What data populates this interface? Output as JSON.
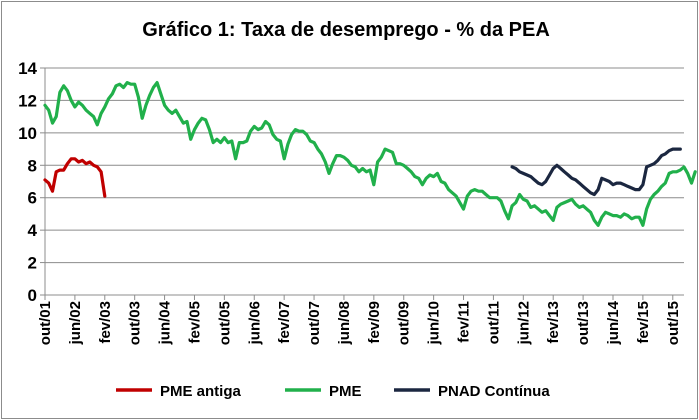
{
  "chart_data": {
    "type": "line",
    "title": "Gráfico 1: Taxa de desemprego - % da PEA",
    "xlabel": "",
    "ylabel": "",
    "ylim": [
      0,
      14
    ],
    "yticks": [
      0,
      2,
      4,
      6,
      8,
      10,
      12,
      14
    ],
    "grid": "horizontal",
    "legend_position": "bottom",
    "x_start": "2001-10",
    "x_end": "2016-01",
    "x_tick_labels": [
      {
        "label": "out/01",
        "date": "2001-10"
      },
      {
        "label": "jun/02",
        "date": "2002-06"
      },
      {
        "label": "fev/03",
        "date": "2003-02"
      },
      {
        "label": "out/03",
        "date": "2003-10"
      },
      {
        "label": "jun/04",
        "date": "2004-06"
      },
      {
        "label": "fev/05",
        "date": "2005-02"
      },
      {
        "label": "out/05",
        "date": "2005-10"
      },
      {
        "label": "jun/06",
        "date": "2006-06"
      },
      {
        "label": "fev/07",
        "date": "2007-02"
      },
      {
        "label": "out/07",
        "date": "2007-10"
      },
      {
        "label": "jun/08",
        "date": "2008-06"
      },
      {
        "label": "fev/09",
        "date": "2009-02"
      },
      {
        "label": "out/09",
        "date": "2009-10"
      },
      {
        "label": "jun/10",
        "date": "2010-06"
      },
      {
        "label": "fev/11",
        "date": "2011-02"
      },
      {
        "label": "out/11",
        "date": "2011-10"
      },
      {
        "label": "jun/12",
        "date": "2012-06"
      },
      {
        "label": "fev/13",
        "date": "2013-02"
      },
      {
        "label": "out/13",
        "date": "2013-10"
      },
      {
        "label": "jun/14",
        "date": "2014-06"
      },
      {
        "label": "fev/15",
        "date": "2015-02"
      },
      {
        "label": "out/15",
        "date": "2015-10"
      }
    ],
    "series": [
      {
        "name": "PME antiga",
        "color": "#c00000",
        "start": "2001-10",
        "values": [
          7.1,
          6.9,
          6.4,
          7.6,
          7.7,
          7.7,
          8.1,
          8.4,
          8.4,
          8.2,
          8.3,
          8.1,
          8.2,
          8.0,
          7.9,
          7.6,
          6.1
        ]
      },
      {
        "name": "PME",
        "color": "#21b04b",
        "start": "2001-10",
        "values": [
          11.7,
          11.4,
          10.6,
          11.0,
          12.5,
          12.9,
          12.6,
          12.0,
          11.6,
          11.9,
          11.7,
          11.4,
          11.2,
          11.0,
          10.5,
          11.2,
          11.6,
          12.1,
          12.4,
          12.9,
          13.0,
          12.8,
          13.1,
          13.0,
          13.0,
          12.2,
          10.9,
          11.7,
          12.3,
          12.8,
          13.1,
          12.4,
          11.7,
          11.4,
          11.2,
          11.4,
          11.0,
          10.6,
          10.7,
          9.6,
          10.2,
          10.6,
          10.9,
          10.8,
          10.2,
          9.4,
          9.6,
          9.4,
          9.7,
          9.4,
          9.5,
          8.4,
          9.4,
          9.4,
          9.5,
          10.1,
          10.4,
          10.2,
          10.3,
          10.7,
          10.5,
          9.9,
          9.6,
          9.5,
          8.4,
          9.3,
          9.9,
          10.2,
          10.1,
          10.1,
          9.9,
          9.5,
          9.4,
          9.0,
          8.7,
          8.2,
          7.5,
          8.1,
          8.6,
          8.6,
          8.5,
          8.3,
          8.0,
          7.9,
          7.6,
          7.8,
          7.6,
          7.7,
          6.8,
          8.2,
          8.5,
          9.0,
          8.9,
          8.8,
          8.1,
          8.1,
          8.0,
          7.8,
          7.6,
          7.3,
          7.2,
          6.8,
          7.2,
          7.4,
          7.3,
          7.5,
          7.0,
          6.9,
          6.5,
          6.3,
          6.1,
          5.7,
          5.3,
          6.1,
          6.4,
          6.5,
          6.4,
          6.4,
          6.2,
          6.0,
          6.0,
          6.0,
          5.8,
          5.2,
          4.7,
          5.5,
          5.7,
          6.2,
          5.9,
          5.8,
          5.4,
          5.5,
          5.3,
          5.1,
          5.2,
          4.9,
          4.6,
          5.4,
          5.6,
          5.7,
          5.8,
          5.9,
          5.6,
          5.4,
          5.5,
          5.3,
          5.1,
          4.6,
          4.3,
          4.8,
          5.1,
          5.0,
          4.9,
          4.9,
          4.8,
          5.0,
          4.9,
          4.7,
          4.8,
          4.8,
          4.3,
          5.3,
          5.9,
          6.2,
          6.4,
          6.7,
          6.9,
          7.5,
          7.6,
          7.6,
          7.7,
          7.9,
          7.5,
          6.9,
          7.6
        ]
      },
      {
        "name": "PNAD Contínua",
        "color": "#1b2740",
        "start": "2012-03",
        "values": [
          7.9,
          7.8,
          7.6,
          7.5,
          7.4,
          7.3,
          7.1,
          6.9,
          6.8,
          7.0,
          7.4,
          7.8,
          8.0,
          7.8,
          7.6,
          7.4,
          7.2,
          7.1,
          6.9,
          6.7,
          6.5,
          6.3,
          6.2,
          6.5,
          7.2,
          7.1,
          7.0,
          6.8,
          6.9,
          6.9,
          6.8,
          6.7,
          6.6,
          6.5,
          6.5,
          6.8,
          7.9,
          8.0,
          8.1,
          8.3,
          8.6,
          8.7,
          8.9,
          9.0,
          9.0,
          9.0
        ]
      }
    ]
  }
}
